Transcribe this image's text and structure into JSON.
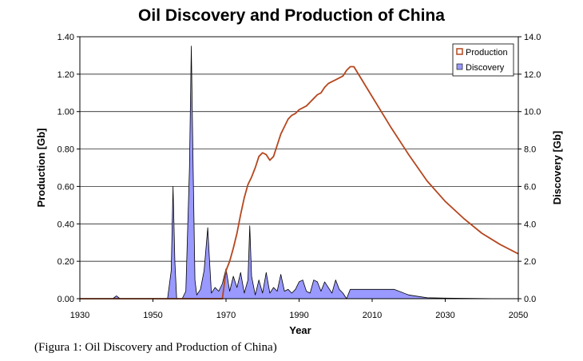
{
  "chart_data": {
    "type": "line",
    "title": "Oil Discovery and Production of China",
    "xlabel": "Year",
    "ylabel_left": "Production [Gb]",
    "ylabel_right": "Discovery [Gb]",
    "xlim": [
      1930,
      2050
    ],
    "ylim_left": [
      0,
      1.4
    ],
    "ylim_right": [
      0,
      14
    ],
    "x_ticks": [
      "1930",
      "1950",
      "1970",
      "1990",
      "2010",
      "2030",
      "2050"
    ],
    "y_left_ticks": [
      "0.00",
      "0.20",
      "0.40",
      "0.60",
      "0.80",
      "1.00",
      "1.20",
      "1.40"
    ],
    "y_right_ticks": [
      "0.0",
      "2.0",
      "4.0",
      "6.0",
      "8.0",
      "10.0",
      "12.0",
      "14.0"
    ],
    "legend_position": "top-right",
    "grid": "horizontal",
    "series": [
      {
        "name": "Production",
        "axis": "left",
        "style": "line",
        "color": "#b5461f",
        "x": [
          1930,
          1969,
          1970,
          1971,
          1972,
          1973,
          1974,
          1975,
          1976,
          1977,
          1978,
          1979,
          1980,
          1981,
          1982,
          1983,
          1984,
          1985,
          1986,
          1987,
          1988,
          1989,
          1990,
          1991,
          1992,
          1993,
          1994,
          1995,
          1996,
          1997,
          1998,
          1999,
          2000,
          2001,
          2002,
          2003,
          2004,
          2005,
          2010,
          2015,
          2020,
          2025,
          2030,
          2035,
          2040,
          2045,
          2050
        ],
        "values": [
          0.0,
          0.0,
          0.15,
          0.2,
          0.27,
          0.35,
          0.45,
          0.54,
          0.61,
          0.65,
          0.7,
          0.76,
          0.78,
          0.77,
          0.74,
          0.76,
          0.82,
          0.88,
          0.92,
          0.96,
          0.98,
          0.99,
          1.01,
          1.02,
          1.03,
          1.05,
          1.07,
          1.09,
          1.1,
          1.13,
          1.15,
          1.16,
          1.17,
          1.18,
          1.19,
          1.22,
          1.24,
          1.24,
          1.08,
          0.92,
          0.77,
          0.63,
          0.52,
          0.43,
          0.35,
          0.29,
          0.24
        ]
      },
      {
        "name": "Discovery",
        "axis": "right",
        "style": "area",
        "color": "#9999ff",
        "x": [
          1930,
          1939,
          1940,
          1941,
          1954,
          1955,
          1955.5,
          1956,
          1956.5,
          1958,
          1959,
          1960,
          1960.5,
          1961,
          1961.5,
          1962,
          1963,
          1964,
          1965,
          1965.5,
          1966,
          1967,
          1968,
          1969,
          1970,
          1971,
          1972,
          1973,
          1974,
          1975,
          1976,
          1976.5,
          1977,
          1978,
          1979,
          1980,
          1981,
          1982,
          1983,
          1984,
          1985,
          1986,
          1987,
          1988,
          1989,
          1990,
          1991,
          1992,
          1993,
          1994,
          1995,
          1996,
          1997,
          1998,
          1999,
          2000,
          2001,
          2002,
          2003,
          2004,
          2005,
          2010,
          2015,
          2016,
          2020,
          2025,
          2030,
          2035,
          2040,
          2045,
          2050
        ],
        "values": [
          0.0,
          0.0,
          0.15,
          0.0,
          0.0,
          1.5,
          6.0,
          2.0,
          0.0,
          0.0,
          0.4,
          7.0,
          13.5,
          7.0,
          1.0,
          0.2,
          0.5,
          1.5,
          3.8,
          2.0,
          0.3,
          0.6,
          0.4,
          0.8,
          1.6,
          0.4,
          1.2,
          0.6,
          1.4,
          0.3,
          1.0,
          3.9,
          1.2,
          0.2,
          1.0,
          0.3,
          1.4,
          0.3,
          0.6,
          0.4,
          1.3,
          0.4,
          0.5,
          0.3,
          0.5,
          0.9,
          1.0,
          0.4,
          0.3,
          1.0,
          0.9,
          0.4,
          0.9,
          0.6,
          0.3,
          1.0,
          0.5,
          0.3,
          0.0,
          0.5,
          0.5,
          0.5,
          0.5,
          0.5,
          0.2,
          0.05,
          0.03,
          0.02,
          0.01,
          0.0,
          0.0
        ]
      }
    ]
  },
  "caption": "(Figura 1: Oil Discovery and Production of China)"
}
